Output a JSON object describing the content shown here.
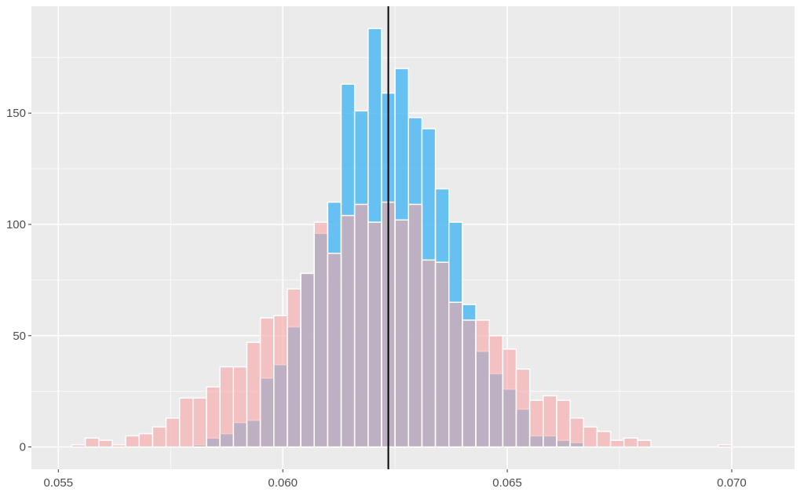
{
  "chart_data": {
    "type": "bar",
    "subtype": "overlapping-histogram",
    "title": "",
    "xlabel": "",
    "ylabel": "",
    "xlim": [
      0.0544,
      0.0714
    ],
    "ylim": [
      -10,
      198
    ],
    "bin_width": 0.0003,
    "bin_starts": [
      0.0553,
      0.0556,
      0.0559,
      0.0562,
      0.0565,
      0.0568,
      0.0571,
      0.0574,
      0.0577,
      0.058,
      0.0583,
      0.0586,
      0.0589,
      0.0592,
      0.0595,
      0.0598,
      0.0601,
      0.0604,
      0.0607,
      0.061,
      0.0613,
      0.0616,
      0.0619,
      0.0622,
      0.0625,
      0.0628,
      0.0631,
      0.0634,
      0.0637,
      0.064,
      0.0643,
      0.0646,
      0.0649,
      0.0652,
      0.0655,
      0.0658,
      0.0661,
      0.0664,
      0.0667,
      0.067,
      0.0673,
      0.0676,
      0.0679,
      0.0682,
      0.0685,
      0.0688,
      0.0691,
      0.0694,
      0.0697
    ],
    "series": [
      {
        "color": "#4fb8f2",
        "opacity": 0.85,
        "values": [
          0,
          0,
          0,
          0,
          0,
          0,
          0,
          0,
          0,
          1,
          4,
          6,
          11,
          12,
          31,
          37,
          54,
          78,
          96,
          110,
          163,
          151,
          188,
          159,
          170,
          148,
          143,
          116,
          101,
          64,
          43,
          33,
          26,
          17,
          5,
          5,
          3,
          2,
          0,
          0,
          0,
          0,
          0,
          0,
          0,
          0,
          0,
          0,
          0
        ]
      },
      {
        "color": "#f8a5a5",
        "opacity": 0.6,
        "values": [
          1,
          4,
          3,
          1,
          5,
          6,
          9,
          13,
          22,
          22,
          27,
          36,
          36,
          47,
          58,
          59,
          71,
          78,
          101,
          87,
          104,
          109,
          101,
          110,
          102,
          109,
          84,
          83,
          65,
          57,
          57,
          50,
          44,
          35,
          21,
          23,
          21,
          13,
          9,
          7,
          3,
          4,
          3,
          0,
          0,
          0,
          0,
          0,
          1
        ]
      }
    ],
    "reference_line_x": 0.06235,
    "x_ticks": [
      "0.055",
      "0.060",
      "0.065",
      "0.070"
    ],
    "y_ticks": [
      "0",
      "50",
      "100",
      "150"
    ],
    "grid": true,
    "legend": "none",
    "colors": {
      "panel_background": "#ebebeb",
      "grid": "#ffffff",
      "bar_outline": "#ffffff",
      "reference_line": "#000000"
    }
  }
}
